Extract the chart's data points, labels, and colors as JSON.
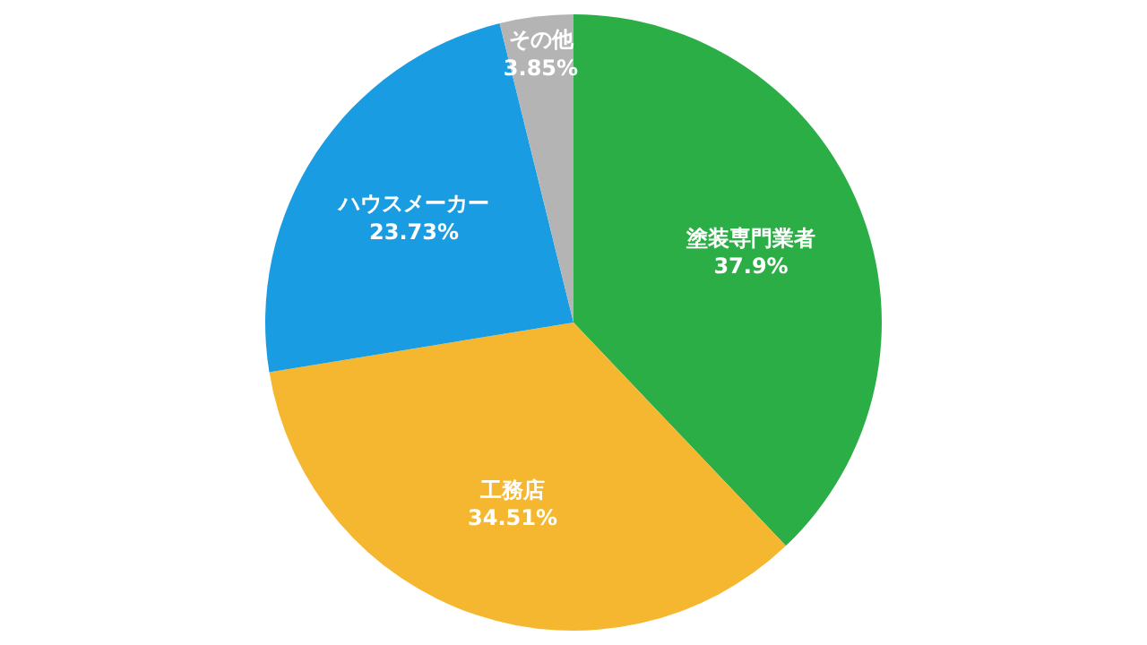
{
  "chart_data": {
    "type": "pie",
    "categories": [
      "塗装専門業者",
      "工務店",
      "ハウスメーカー",
      "その他"
    ],
    "values": [
      37.9,
      34.51,
      23.73,
      3.85
    ],
    "colors": [
      "#2cae47",
      "#f6b730",
      "#1a9ce2",
      "#b4b4b4"
    ],
    "value_labels": [
      "37.9%",
      "34.51%",
      "23.73%",
      "3.85%"
    ]
  }
}
